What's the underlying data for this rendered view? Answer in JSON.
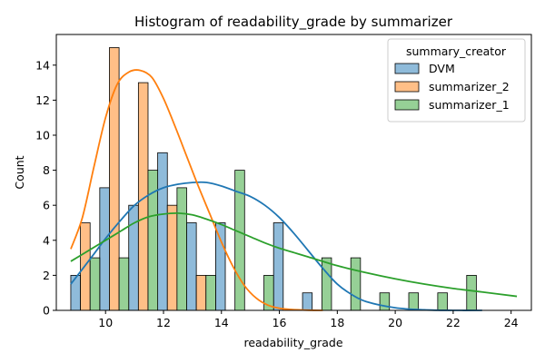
{
  "chart_data": {
    "type": "bar",
    "title": "Histogram of readability_grade by summarizer",
    "xlabel": "readability_grade",
    "ylabel": "Count",
    "xlim": [
      8.3,
      24.7
    ],
    "ylim": [
      0,
      15.75
    ],
    "x_ticks": [
      10,
      12,
      14,
      16,
      18,
      20,
      22,
      24
    ],
    "y_ticks": [
      0,
      2,
      4,
      6,
      8,
      10,
      12,
      14
    ],
    "grid": false,
    "legend": {
      "title": "summary_creator",
      "placement": "top-right"
    },
    "bin_starts": [
      8.8,
      9.8,
      10.8,
      11.8,
      12.8,
      13.8,
      14.8,
      15.8,
      16.8,
      17.8,
      18.8,
      19.8,
      20.8,
      21.8,
      22.8,
      23.8
    ],
    "bin_width": 1.0,
    "series": [
      {
        "name": "DVM",
        "color": "#1f77b4",
        "values": [
          2,
          7,
          6,
          9,
          5,
          5,
          0,
          5,
          1,
          0,
          0,
          0,
          0,
          0,
          0,
          0
        ],
        "kde_x": [
          8.8,
          9.5,
          10.0,
          10.5,
          11.0,
          11.5,
          12.0,
          12.5,
          13.0,
          13.5,
          14.0,
          14.5,
          15.0,
          15.5,
          16.0,
          16.5,
          17.0,
          17.5,
          18.0,
          18.5,
          19.0,
          20.0,
          21.0,
          22.0,
          23.0
        ],
        "kde_y": [
          1.5,
          3.0,
          4.1,
          5.1,
          6.0,
          6.6,
          7.0,
          7.2,
          7.3,
          7.3,
          7.1,
          6.8,
          6.5,
          6.0,
          5.3,
          4.4,
          3.4,
          2.4,
          1.5,
          0.9,
          0.5,
          0.15,
          0.03,
          0.0,
          0.0
        ]
      },
      {
        "name": "summarizer_2",
        "color": "#ff7f0e",
        "values": [
          5,
          15,
          13,
          6,
          2,
          0,
          0,
          0,
          0,
          0,
          0,
          0,
          0,
          0,
          0,
          0
        ],
        "kde_x": [
          8.8,
          9.2,
          9.6,
          10.0,
          10.4,
          10.8,
          11.2,
          11.6,
          12.0,
          12.4,
          12.8,
          13.2,
          13.6,
          14.0,
          14.4,
          14.8,
          15.2,
          15.6,
          16.0,
          16.4,
          17.0,
          17.5
        ],
        "kde_y": [
          3.5,
          5.3,
          8.2,
          11.0,
          12.9,
          13.6,
          13.7,
          13.3,
          12.1,
          10.5,
          8.8,
          7.1,
          5.5,
          3.9,
          2.5,
          1.4,
          0.7,
          0.3,
          0.12,
          0.05,
          0.01,
          0.0
        ]
      },
      {
        "name": "summarizer_1",
        "color": "#2ca02c",
        "values": [
          3,
          3,
          8,
          7,
          2,
          8,
          2,
          0,
          3,
          3,
          1,
          1,
          1,
          2,
          0,
          0
        ],
        "kde_x": [
          8.8,
          9.5,
          10.0,
          10.5,
          11.0,
          11.5,
          12.0,
          12.5,
          13.0,
          13.5,
          14.0,
          14.5,
          15.0,
          15.5,
          16.0,
          16.5,
          17.0,
          18.0,
          19.0,
          20.0,
          21.0,
          22.0,
          23.0,
          24.2
        ],
        "kde_y": [
          2.8,
          3.5,
          4.0,
          4.5,
          5.0,
          5.35,
          5.5,
          5.55,
          5.45,
          5.2,
          4.9,
          4.55,
          4.2,
          3.85,
          3.55,
          3.3,
          3.05,
          2.55,
          2.15,
          1.8,
          1.5,
          1.25,
          1.05,
          0.8
        ]
      }
    ]
  }
}
